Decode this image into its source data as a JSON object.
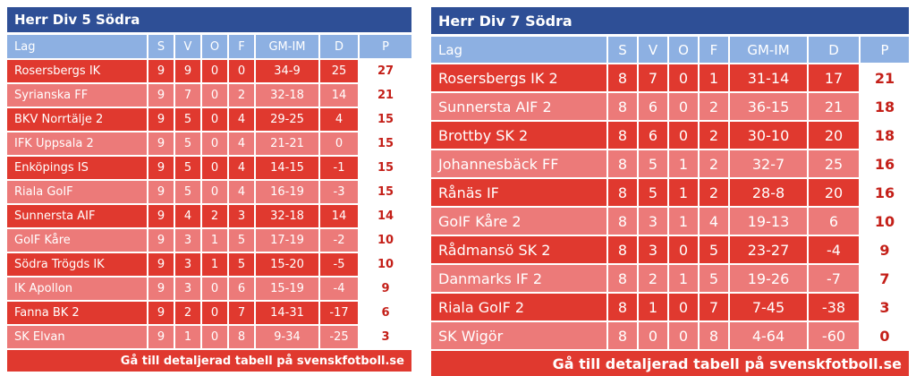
{
  "left": {
    "title": "Herr Div 5 Södra",
    "headers": [
      "Lag",
      "S",
      "V",
      "O",
      "F",
      "GM-IM",
      "D",
      "P"
    ],
    "rows": [
      [
        "Rosersbergs IK",
        "9",
        "9",
        "0",
        "0",
        "34-9",
        "25",
        "27"
      ],
      [
        "Syrianska FF",
        "9",
        "7",
        "0",
        "2",
        "32-18",
        "14",
        "21"
      ],
      [
        "BKV Norrtälje 2",
        "9",
        "5",
        "0",
        "4",
        "29-25",
        "4",
        "15"
      ],
      [
        "IFK Uppsala 2",
        "9",
        "5",
        "0",
        "4",
        "21-21",
        "0",
        "15"
      ],
      [
        "Enköpings IS",
        "9",
        "5",
        "0",
        "4",
        "14-15",
        "-1",
        "15"
      ],
      [
        "Riala GoIF",
        "9",
        "5",
        "0",
        "4",
        "16-19",
        "-3",
        "15"
      ],
      [
        "Sunnersta AIF",
        "9",
        "4",
        "2",
        "3",
        "32-18",
        "14",
        "14"
      ],
      [
        "GoIF Kåre",
        "9",
        "3",
        "1",
        "5",
        "17-19",
        "-2",
        "10"
      ],
      [
        "Södra Trögds IK",
        "9",
        "3",
        "1",
        "5",
        "15-20",
        "-5",
        "10"
      ],
      [
        "IK Apollon",
        "9",
        "3",
        "0",
        "6",
        "15-19",
        "-4",
        "9"
      ],
      [
        "Fanna BK 2",
        "9",
        "2",
        "0",
        "7",
        "14-31",
        "-17",
        "6"
      ],
      [
        "SK Elvan",
        "9",
        "1",
        "0",
        "8",
        "9-34",
        "-25",
        "3"
      ]
    ],
    "footer": "Gå till detaljerad tabell på svenskfotboll.se"
  },
  "right": {
    "title": "Herr Div 7 Södra",
    "headers": [
      "Lag",
      "S",
      "V",
      "O",
      "F",
      "GM-IM",
      "D",
      "P"
    ],
    "rows": [
      [
        "Rosersbergs IK 2",
        "8",
        "7",
        "0",
        "1",
        "31-14",
        "17",
        "21"
      ],
      [
        "Sunnersta AIF 2",
        "8",
        "6",
        "0",
        "2",
        "36-15",
        "21",
        "18"
      ],
      [
        "Brottby SK 2",
        "8",
        "6",
        "0",
        "2",
        "30-10",
        "20",
        "18"
      ],
      [
        "Johannesbäck FF",
        "8",
        "5",
        "1",
        "2",
        "32-7",
        "25",
        "16"
      ],
      [
        "Rånäs IF",
        "8",
        "5",
        "1",
        "2",
        "28-8",
        "20",
        "16"
      ],
      [
        "GoIF Kåre 2",
        "8",
        "3",
        "1",
        "4",
        "19-13",
        "6",
        "10"
      ],
      [
        "Rådmansö SK 2",
        "8",
        "3",
        "0",
        "5",
        "23-27",
        "-4",
        "9"
      ],
      [
        "Danmarks IF 2",
        "8",
        "2",
        "1",
        "5",
        "19-26",
        "-7",
        "7"
      ],
      [
        "Riala GoIF 2",
        "8",
        "1",
        "0",
        "7",
        "7-45",
        "-38",
        "3"
      ],
      [
        "SK Wigör",
        "8",
        "0",
        "0",
        "8",
        "4-64",
        "-60",
        "0"
      ]
    ],
    "footer": "Gå till detaljerad tabell på svenskfotboll.se"
  },
  "colors": {
    "title_bg": "#2e4f96",
    "header_bg": "#8db0e2",
    "row_dark": "#e0392f",
    "row_light": "#ec7a79",
    "points_text": "#c41f18"
  }
}
